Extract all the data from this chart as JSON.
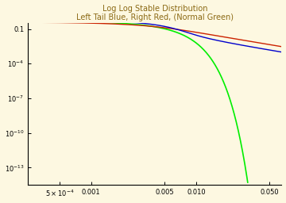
{
  "title_line1": "Log Log Stable Distribution",
  "title_line2": "Left Tail Blue, Right Red, (Normal Green)",
  "background_color": "#fdf8e1",
  "xlim_log": [
    -3.602,
    -1.187
  ],
  "ylim_log": [
    -14.5,
    -0.5
  ],
  "color_left": "#0000cc",
  "color_right": "#cc2200",
  "color_normal": "#00ee00",
  "title_color": "#8B6914",
  "axis_color": "#000000",
  "x_start_log": -3.602,
  "x_end_log": -1.187,
  "n_points": 600
}
